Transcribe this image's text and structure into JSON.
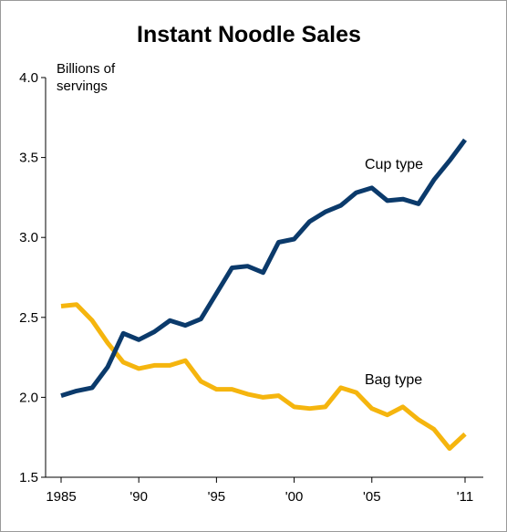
{
  "chart_data": {
    "type": "line",
    "title": "Instant Noodle Sales",
    "ylabel_lines": [
      "Billions of",
      "servings"
    ],
    "xlabel": "",
    "x_tick_labels": [
      {
        "x": 1985,
        "label": "1985"
      },
      {
        "x": 1990,
        "label": "'90"
      },
      {
        "x": 1995,
        "label": "'95"
      },
      {
        "x": 2000,
        "label": "'00"
      },
      {
        "x": 2005,
        "label": "'05"
      },
      {
        "x": 2011,
        "label": "'11"
      }
    ],
    "y_ticks": [
      1.5,
      2.0,
      2.5,
      3.0,
      3.5,
      4.0
    ],
    "y_tick_labels": [
      "1.5",
      "2.0",
      "2.5",
      "3.0",
      "3.5",
      "4.0"
    ],
    "xlim": [
      1985,
      2011
    ],
    "ylim": [
      1.5,
      4.0
    ],
    "grid": false,
    "legend": "none",
    "x": [
      1985,
      1986,
      1987,
      1988,
      1989,
      1990,
      1991,
      1992,
      1993,
      1994,
      1995,
      1996,
      1997,
      1998,
      1999,
      2000,
      2001,
      2002,
      2003,
      2004,
      2005,
      2006,
      2007,
      2008,
      2009,
      2010,
      2011
    ],
    "series": [
      {
        "name": "Cup type",
        "color": "#0b3a6b",
        "values": [
          2.01,
          2.04,
          2.06,
          2.19,
          2.4,
          2.36,
          2.41,
          2.48,
          2.45,
          2.49,
          2.65,
          2.81,
          2.82,
          2.78,
          2.97,
          2.99,
          3.1,
          3.16,
          3.2,
          3.28,
          3.31,
          3.23,
          3.24,
          3.21,
          3.36,
          3.48,
          3.61
        ]
      },
      {
        "name": "Bag type",
        "color": "#f5b50e",
        "values": [
          2.57,
          2.58,
          2.48,
          2.34,
          2.22,
          2.18,
          2.2,
          2.2,
          2.23,
          2.1,
          2.05,
          2.05,
          2.02,
          2.0,
          2.01,
          1.94,
          1.93,
          1.94,
          2.06,
          2.03,
          1.93,
          1.89,
          1.94,
          1.86,
          1.8,
          1.68,
          1.77
        ]
      }
    ]
  }
}
